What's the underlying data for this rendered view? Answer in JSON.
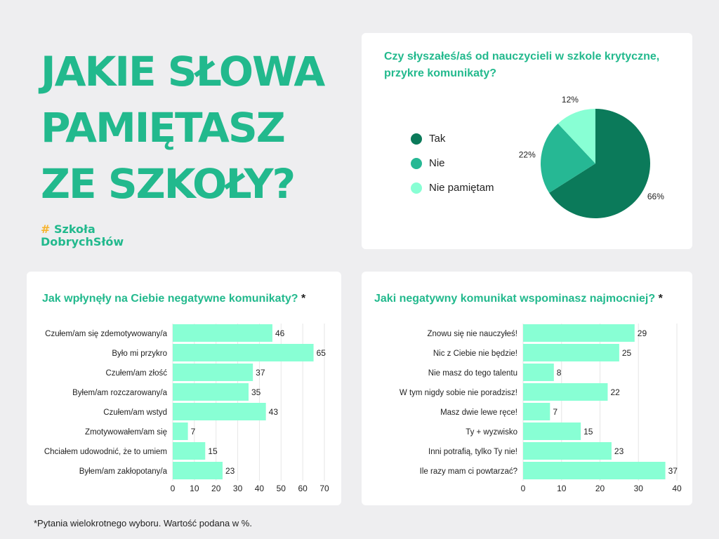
{
  "header": {
    "title_lines": [
      "JAKIE SŁOWA",
      "PAMIĘTASZ",
      "ZE SZKOŁY?"
    ],
    "brand_hash": "#",
    "brand_line1": "Szkoła",
    "brand_line2": "DobrychSłów"
  },
  "footnote": "*Pytania wielokrotnego wyboru. Wartość podana w %.",
  "colors": {
    "accent": "#22b98d",
    "bar": "#88ffd4",
    "tak": "#0b7a5a",
    "nie": "#26b894",
    "nie_pamietam": "#88ffd4"
  },
  "chart_data": [
    {
      "type": "pie",
      "title": "Czy słyszałeś/aś od nauczycieli w szkole krytyczne, przykre komunikaty?",
      "legend": "left",
      "slices": [
        {
          "label": "Tak",
          "value": 66,
          "display": "66%",
          "color": "#0b7a5a"
        },
        {
          "label": "Nie",
          "value": 22,
          "display": "22%",
          "color": "#26b894"
        },
        {
          "label": "Nie pamiętam",
          "value": 12,
          "display": "12%",
          "color": "#88ffd4"
        }
      ]
    },
    {
      "type": "bar",
      "orientation": "horizontal",
      "title": "Jak wpłynęły na Ciebie negatywne komunikaty?",
      "title_mark": "*",
      "categories": [
        "Czułem/am się zdemotywowany/a",
        "Było mi przykro",
        "Czułem/am złość",
        "Byłem/am rozczarowany/a",
        "Czułem/am wstyd",
        "Zmotywowałem/am się",
        "Chciałem udowodnić, że to umiem",
        "Byłem/am zakłopotany/a"
      ],
      "values": [
        46,
        65,
        37,
        35,
        43,
        7,
        15,
        23
      ],
      "xlim": [
        0,
        70
      ],
      "ticks": [
        0,
        10,
        20,
        30,
        40,
        50,
        60,
        70
      ],
      "grid": true
    },
    {
      "type": "bar",
      "orientation": "horizontal",
      "title": "Jaki negatywny komunikat wspominasz najmocniej?",
      "title_mark": "*",
      "categories": [
        "Znowu się nie nauczyłeś!",
        "Nic z Ciebie nie będzie!",
        "Nie masz do tego talentu",
        "W tym nigdy sobie nie poradzisz!",
        "Masz dwie lewe ręce!",
        "Ty + wyzwisko",
        "Inni potrafią, tylko Ty nie!",
        "Ile razy mam ci powtarzać?"
      ],
      "values": [
        29,
        25,
        8,
        22,
        7,
        15,
        23,
        37
      ],
      "xlim": [
        0,
        40
      ],
      "ticks": [
        0,
        10,
        20,
        30,
        40
      ],
      "grid": true
    }
  ]
}
